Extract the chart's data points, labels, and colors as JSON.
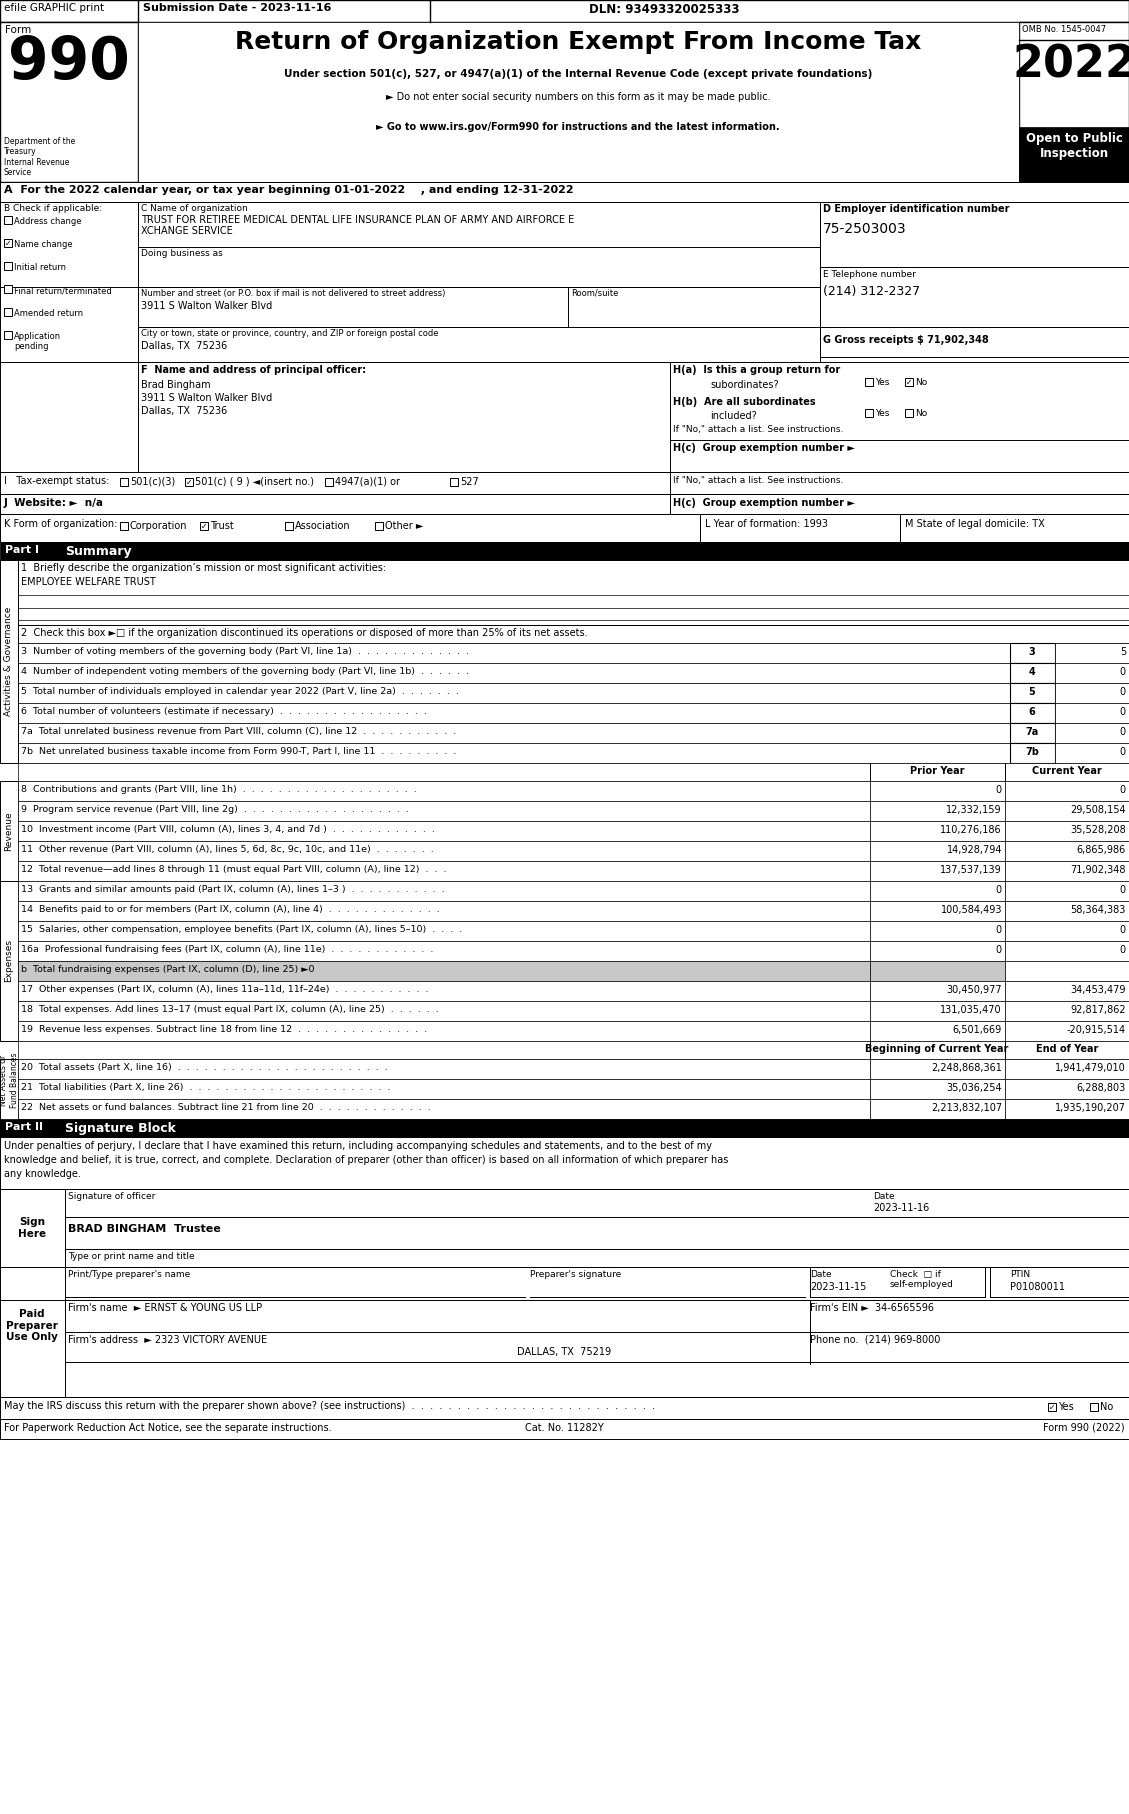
{
  "title_header": "Return of Organization Exempt From Income Tax",
  "form_number": "990",
  "year": "2022",
  "omb": "OMB No. 1545-0047",
  "open_to_public": "Open to Public\nInspection",
  "efile_text": "efile GRAPHIC print",
  "submission_date": "Submission Date - 2023-11-16",
  "dln": "DLN: 93493320025333",
  "subtitle1": "Under section 501(c), 527, or 4947(a)(1) of the Internal Revenue Code (except private foundations)",
  "subtitle2": "► Do not enter social security numbers on this form as it may be made public.",
  "subtitle3": "► Go to www.irs.gov/Form990 for instructions and the latest information.",
  "dept": "Department of the\nTreasury\nInternal Revenue\nService",
  "line_a": "A  For the 2022 calendar year, or tax year beginning 01-01-2022    , and ending 12-31-2022",
  "b_label": "B Check if applicable:",
  "checks": [
    "Address change",
    "Name change",
    "Initial return",
    "Final return/terminated",
    "Amended return",
    "Application\npending"
  ],
  "checked_b": [
    false,
    true,
    false,
    false,
    false,
    false
  ],
  "c_label": "C Name of organization",
  "org_name_line1": "TRUST FOR RETIREE MEDICAL DENTAL LIFE INSURANCE PLAN OF ARMY AND AIRFORCE E",
  "org_name_line2": "XCHANGE SERVICE",
  "dba_label": "Doing business as",
  "address_label": "Number and street (or P.O. box if mail is not delivered to street address)",
  "room_label": "Room/suite",
  "address_val": "3911 S Walton Walker Blvd",
  "city_label": "City or town, state or province, country, and ZIP or foreign postal code",
  "city_val": "Dallas, TX  75236",
  "d_label": "D Employer identification number",
  "ein": "75-2503003",
  "e_label": "E Telephone number",
  "phone": "(214) 312-2327",
  "g_label": "G Gross receipts $ 71,902,348",
  "f_label": "F  Name and address of principal officer:",
  "officer_name": "Brad Bingham",
  "officer_addr1": "3911 S Walton Walker Blvd",
  "officer_addr2": "Dallas, TX  75236",
  "ha_label": "H(a)  Is this a group return for",
  "ha_sub": "subordinates?",
  "ha_yes": false,
  "ha_no": true,
  "hb_label": "H(b)  Are all subordinates",
  "hb_sub": "included?",
  "hb_yes": false,
  "hb_no": false,
  "hb_note": "If \"No,\" attach a list. See instructions.",
  "hc_label": "H(c)  Group exemption number ►",
  "i_label": "I   Tax-exempt status:",
  "tax_status_labels": [
    "501(c)(3)",
    "501(c) ( 9 ) ◄(insert no.)",
    "4947(a)(1) or",
    "527"
  ],
  "tax_checked": [
    false,
    true,
    false,
    false
  ],
  "j_label": "J  Website: ►  n/a",
  "k_label": "K Form of organization:",
  "k_options": [
    "Corporation",
    "Trust",
    "Association",
    "Other ►"
  ],
  "k_checked": [
    false,
    true,
    false,
    false
  ],
  "l_label": "L Year of formation: 1993",
  "m_label": "M State of legal domicile: TX",
  "part1_label": "Part I",
  "part1_title": "Summary",
  "line1_label": "1  Briefly describe the organization’s mission or most significant activities:",
  "mission": "EMPLOYEE WELFARE TRUST",
  "line2": "2  Check this box ►□ if the organization discontinued its operations or disposed of more than 25% of its net assets.",
  "summary_lines": [
    {
      "num": "3",
      "label": "Number of voting members of the governing body (Part VI, line 1a)  .  .  .  .  .  .  .  .  .  .  .  .  .",
      "val": "5"
    },
    {
      "num": "4",
      "label": "Number of independent voting members of the governing body (Part VI, line 1b)  .  .  .  .  .  .",
      "val": "0"
    },
    {
      "num": "5",
      "label": "Total number of individuals employed in calendar year 2022 (Part V, line 2a)  .  .  .  .  .  .  .",
      "val": "0"
    },
    {
      "num": "6",
      "label": "Total number of volunteers (estimate if necessary)  .  .  .  .  .  .  .  .  .  .  .  .  .  .  .  .  .",
      "val": "0"
    },
    {
      "num": "7a",
      "label": "Total unrelated business revenue from Part VIII, column (C), line 12  .  .  .  .  .  .  .  .  .  .  .",
      "val": "0"
    },
    {
      "num": "7b",
      "label": "Net unrelated business taxable income from Form 990-T, Part I, line 11  .  .  .  .  .  .  .  .  .",
      "val": "0"
    }
  ],
  "col_prior": "Prior Year",
  "col_current": "Current Year",
  "revenue_label": "Revenue",
  "revenue_lines": [
    {
      "num": "8",
      "label": "Contributions and grants (Part VIII, line 1h)  .  .  .  .  .  .  .  .  .  .  .  .  .  .  .  .  .  .  .  .",
      "prior": "0",
      "current": "0"
    },
    {
      "num": "9",
      "label": "Program service revenue (Part VIII, line 2g)  .  .  .  .  .  .  .  .  .  .  .  .  .  .  .  .  .  .  .",
      "prior": "12,332,159",
      "current": "29,508,154"
    },
    {
      "num": "10",
      "label": "Investment income (Part VIII, column (A), lines 3, 4, and 7d )  .  .  .  .  .  .  .  .  .  .  .  .",
      "prior": "110,276,186",
      "current": "35,528,208"
    },
    {
      "num": "11",
      "label": "Other revenue (Part VIII, column (A), lines 5, 6d, 8c, 9c, 10c, and 11e)  .  .  .  .  .  .  .",
      "prior": "14,928,794",
      "current": "6,865,986"
    },
    {
      "num": "12",
      "label": "Total revenue—add lines 8 through 11 (must equal Part VIII, column (A), line 12)  .  .  .",
      "prior": "137,537,139",
      "current": "71,902,348"
    }
  ],
  "expenses_label": "Expenses",
  "expense_lines": [
    {
      "num": "13",
      "label": "Grants and similar amounts paid (Part IX, column (A), lines 1–3 )  .  .  .  .  .  .  .  .  .  .  .",
      "prior": "0",
      "current": "0",
      "grey": false
    },
    {
      "num": "14",
      "label": "Benefits paid to or for members (Part IX, column (A), line 4)  .  .  .  .  .  .  .  .  .  .  .  .  .",
      "prior": "100,584,493",
      "current": "58,364,383",
      "grey": false
    },
    {
      "num": "15",
      "label": "Salaries, other compensation, employee benefits (Part IX, column (A), lines 5–10)  .  .  .  .",
      "prior": "0",
      "current": "0",
      "grey": false
    },
    {
      "num": "16a",
      "label": "Professional fundraising fees (Part IX, column (A), line 11e)  .  .  .  .  .  .  .  .  .  .  .  .",
      "prior": "0",
      "current": "0",
      "grey": false
    },
    {
      "num": "b",
      "label": "Total fundraising expenses (Part IX, column (D), line 25) ►0",
      "prior": "",
      "current": "",
      "grey": true
    },
    {
      "num": "17",
      "label": "Other expenses (Part IX, column (A), lines 11a–11d, 11f–24e)  .  .  .  .  .  .  .  .  .  .  .",
      "prior": "30,450,977",
      "current": "34,453,479",
      "grey": false
    },
    {
      "num": "18",
      "label": "Total expenses. Add lines 13–17 (must equal Part IX, column (A), line 25)  .  .  .  .  .  .",
      "prior": "131,035,470",
      "current": "92,817,862",
      "grey": false
    },
    {
      "num": "19",
      "label": "Revenue less expenses. Subtract line 18 from line 12  .  .  .  .  .  .  .  .  .  .  .  .  .  .  .",
      "prior": "6,501,669",
      "current": "-20,915,514",
      "grey": false
    }
  ],
  "net_assets_label": "Net Assets or\nFund Balances",
  "net_assets_header_beg": "Beginning of Current Year",
  "net_assets_header_end": "End of Year",
  "net_asset_lines": [
    {
      "num": "20",
      "label": "Total assets (Part X, line 16)  .  .  .  .  .  .  .  .  .  .  .  .  .  .  .  .  .  .  .  .  .  .  .  .",
      "beg": "2,248,868,361",
      "end": "1,941,479,010"
    },
    {
      "num": "21",
      "label": "Total liabilities (Part X, line 26)  .  .  .  .  .  .  .  .  .  .  .  .  .  .  .  .  .  .  .  .  .  .  .",
      "beg": "35,036,254",
      "end": "6,288,803"
    },
    {
      "num": "22",
      "label": "Net assets or fund balances. Subtract line 21 from line 20  .  .  .  .  .  .  .  .  .  .  .  .  .",
      "beg": "2,213,832,107",
      "end": "1,935,190,207"
    }
  ],
  "part2_label": "Part II",
  "part2_title": "Signature Block",
  "sig_text_line1": "Under penalties of perjury, I declare that I have examined this return, including accompanying schedules and statements, and to the best of my",
  "sig_text_line2": "knowledge and belief, it is true, correct, and complete. Declaration of preparer (other than officer) is based on all information of which preparer has",
  "sig_text_line3": "any knowledge.",
  "sign_here": "Sign\nHere",
  "sig_date_val": "2023-11-16",
  "sig_label": "Signature of officer",
  "date_label": "Date",
  "officer_sig_name": "BRAD BINGHAM  Trustee",
  "title_type": "Type or print name and title",
  "paid_preparer": "Paid\nPreparer\nUse Only",
  "preparer_name_label": "Print/Type preparer's name",
  "preparer_sig_label": "Preparer's signature",
  "date_label2": "Date",
  "check_label": "Check  if\nself-employed",
  "ptin_label": "PTIN",
  "preparer_date": "2023-11-15",
  "preparer_ptin": "P01080011",
  "firm_name_label": "Firm's name",
  "firm_name_val": "► ERNST & YOUNG US LLP",
  "firm_ein_label": "Firm's EIN ►",
  "firm_ein_val": "34-6565596",
  "firm_addr_label": "Firm's address",
  "firm_addr_val": "► 2323 VICTORY AVENUE",
  "firm_city_val": "DALLAS, TX  75219",
  "firm_phone_label": "Phone no.",
  "firm_phone_val": "(214) 969-8000",
  "may_discuss": "May the IRS discuss this return with the preparer shown above? (see instructions)  .  .  .  .  .  .  .  .  .  .  .  .  .  .  .  .  .  .  .  .  .  .  .  .  .  .  .",
  "discuss_yes": true,
  "discuss_no": false,
  "footer1": "For Paperwork Reduction Act Notice, see the separate instructions.",
  "footer2": "Cat. No. 11282Y",
  "footer3": "Form 990 (2022)"
}
